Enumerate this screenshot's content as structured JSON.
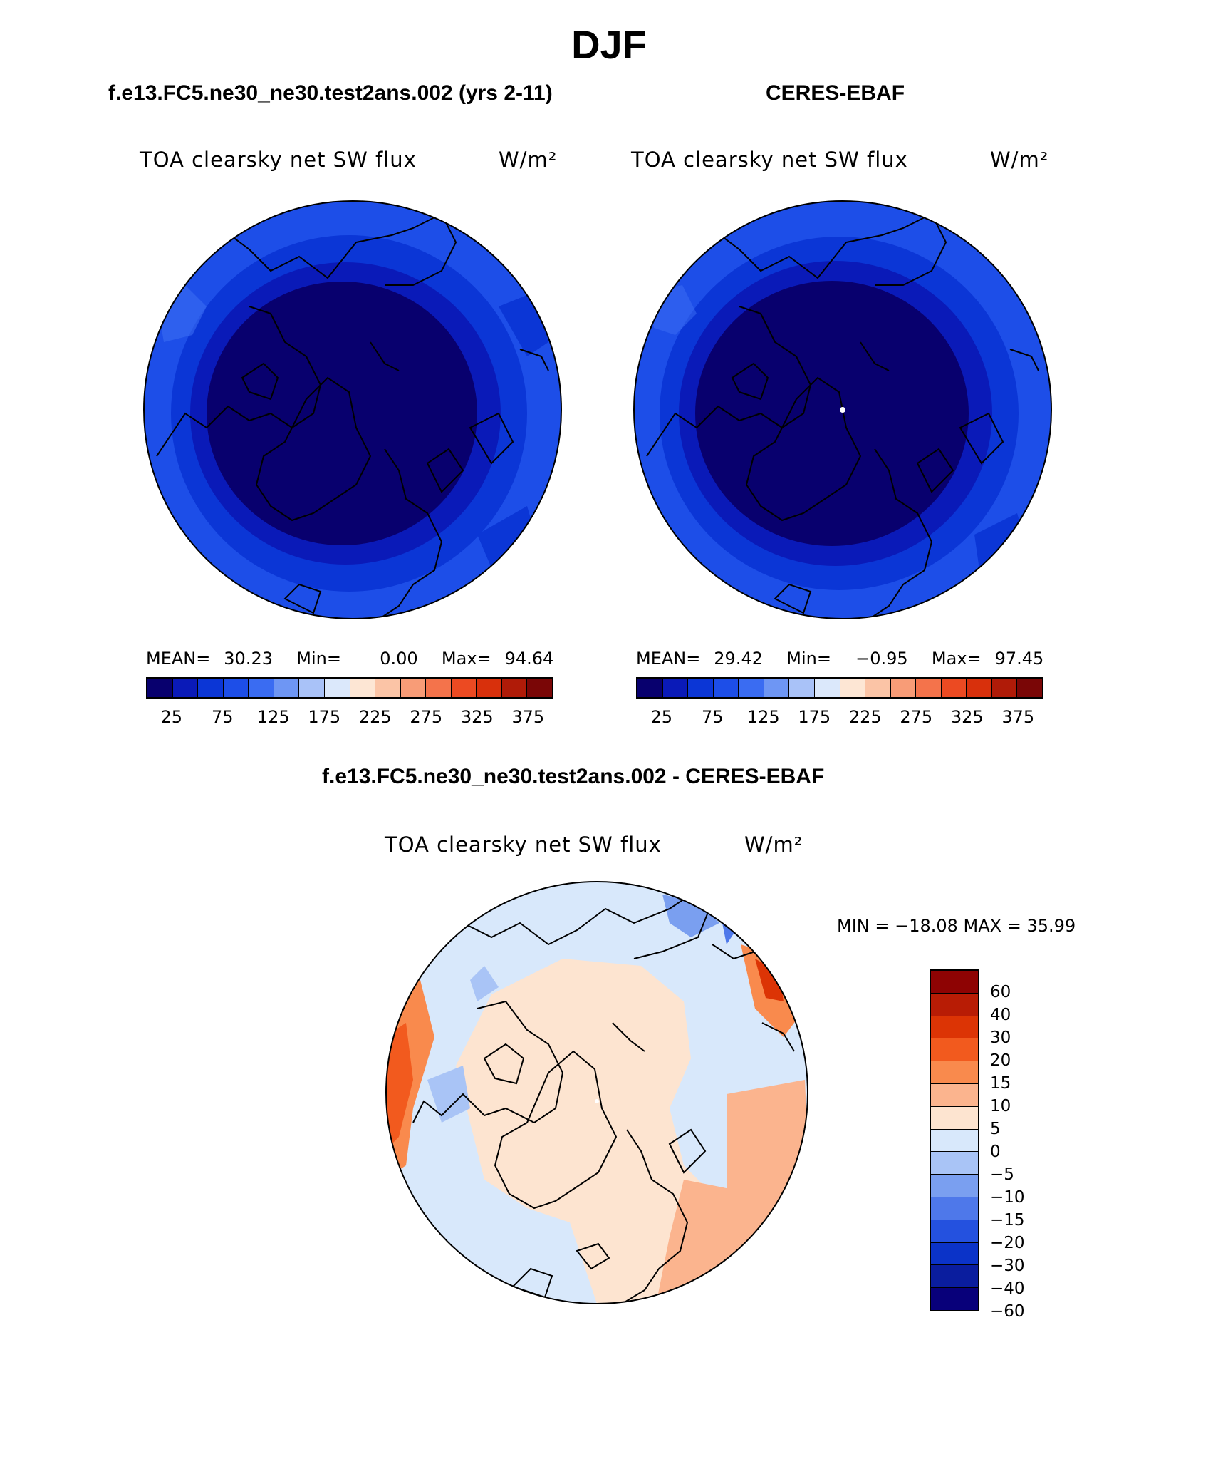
{
  "title": "DJF",
  "left_panel": {
    "header": "f.e13.FC5.ne30_ne30.test2ans.002 (yrs 2-11)",
    "variable": "TOA clearsky net SW flux",
    "units": "W/m²",
    "mean_label": "MEAN=",
    "mean": "30.23",
    "min_label": "Min=",
    "min": "0.00",
    "max_label": "Max=",
    "max": "94.64"
  },
  "right_panel": {
    "header": "CERES-EBAF",
    "variable": "TOA clearsky net SW flux",
    "units": "W/m²",
    "mean_label": "MEAN=",
    "mean": "29.42",
    "min_label": "Min=",
    "min": "−0.95",
    "max_label": "Max=",
    "max": "97.45"
  },
  "abs_colorbar": {
    "colors": [
      "#08006e",
      "#0a1ab8",
      "#0b36d6",
      "#1d4ee8",
      "#3a6cf2",
      "#6e96f4",
      "#a9c2f8",
      "#dbe8fb",
      "#fde6d4",
      "#fbc4a6",
      "#f89c77",
      "#f4734b",
      "#ec4a22",
      "#d8300c",
      "#b01b08",
      "#7a0606"
    ],
    "tick_labels": [
      "25",
      "75",
      "125",
      "175",
      "225",
      "275",
      "325",
      "375"
    ]
  },
  "diff_panel": {
    "header": "f.e13.FC5.ne30_ne30.test2ans.002 - CERES-EBAF",
    "variable": "TOA clearsky net SW flux",
    "units": "W/m²",
    "minmax_text": "MIN = −18.08 MAX =   35.99"
  },
  "diff_colorbar": {
    "colors": [
      "#8e0303",
      "#b81c05",
      "#dc3405",
      "#f25a1e",
      "#f98a4d",
      "#fbb48e",
      "#fde4d0",
      "#d8e8fb",
      "#a9c4f6",
      "#7a9ff0",
      "#4e78ea",
      "#2451df",
      "#0b33c8",
      "#0a1d9e",
      "#08007a"
    ],
    "labels": [
      "60",
      "40",
      "30",
      "20",
      "15",
      "10",
      "5",
      "0",
      "−5",
      "−10",
      "−15",
      "−20",
      "−30",
      "−40",
      "−60"
    ]
  }
}
